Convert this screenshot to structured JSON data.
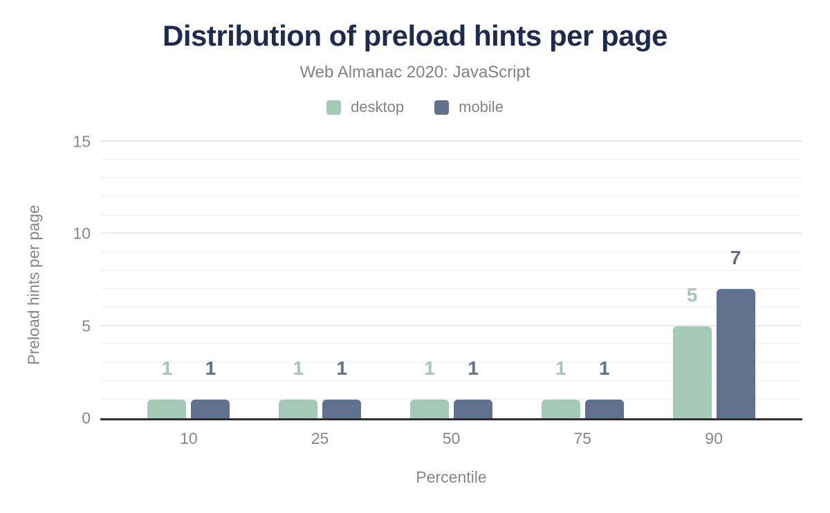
{
  "page": {
    "title": "Distribution of preload hints per page",
    "subtitle": "Web Almanac 2020: JavaScript"
  },
  "legend": {
    "items": [
      {
        "label": "desktop",
        "color": "#a5c9b7"
      },
      {
        "label": "mobile",
        "color": "#5f718c"
      }
    ]
  },
  "chart_data": {
    "type": "bar",
    "title": "Distribution of preload hints per page",
    "subtitle": "Web Almanac 2020: JavaScript",
    "categories": [
      "10",
      "25",
      "50",
      "75",
      "90"
    ],
    "series": [
      {
        "name": "desktop",
        "color": "#a5c9b7",
        "values": [
          1,
          1,
          1,
          1,
          5
        ]
      },
      {
        "name": "mobile",
        "color": "#5f718c",
        "values": [
          1,
          1,
          1,
          1,
          7
        ]
      }
    ],
    "xlabel": "Percentile",
    "ylabel": "Preload hints per page",
    "ylim": [
      0,
      15
    ],
    "yticks": [
      "0",
      "5",
      "10",
      "15"
    ],
    "grid": "horizontal",
    "grid_minor_step": 1,
    "grid_major_step": 5,
    "legend_position": "top",
    "bar_value_labels": true
  },
  "colors": {
    "title": "#1e2b4e",
    "axis_text": "#82878f",
    "axis_line": "#2d2d2d",
    "grid_minor": "#f5f5f6",
    "grid_major": "#ebebec",
    "background": "#ffffff"
  }
}
